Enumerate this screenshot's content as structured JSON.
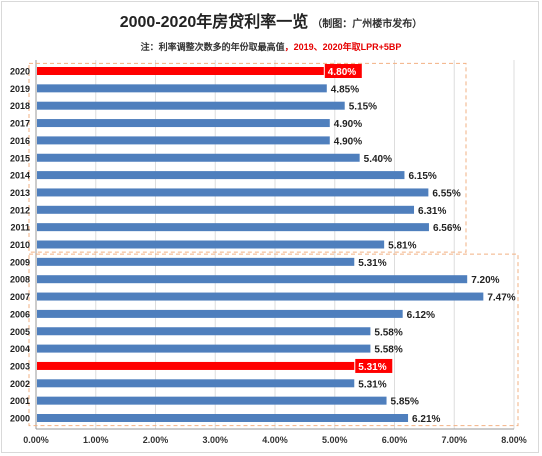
{
  "header": {
    "title": "2000-2020年房贷利率一览",
    "subtitle": "（制图：广州楼市发布）",
    "note_prefix": "注：利率调整次数多的年份取最高值",
    "note_highlight": "，2019、2020年取LPR+5BP"
  },
  "colors": {
    "bar": "#4f7fbd",
    "highlight": "#ff0000",
    "box_border": "#f2b183",
    "grid": "#dddddd",
    "axis": "#999999"
  },
  "chart_data": {
    "type": "bar",
    "orientation": "horizontal",
    "title": "2000-2020年房贷利率一览",
    "categories": [
      "2020",
      "2019",
      "2018",
      "2017",
      "2016",
      "2015",
      "2014",
      "2013",
      "2012",
      "2011",
      "2010",
      "2009",
      "2008",
      "2007",
      "2006",
      "2005",
      "2004",
      "2003",
      "2002",
      "2001",
      "2000"
    ],
    "values": [
      4.8,
      4.85,
      5.15,
      4.9,
      4.9,
      5.4,
      6.15,
      6.55,
      6.31,
      6.56,
      5.81,
      5.31,
      7.2,
      7.47,
      6.12,
      5.58,
      5.58,
      5.31,
      5.31,
      5.85,
      6.21
    ],
    "value_labels": [
      "4.80%",
      "4.85%",
      "5.15%",
      "4.90%",
      "4.90%",
      "5.40%",
      "6.15%",
      "6.55%",
      "6.31%",
      "6.56%",
      "5.81%",
      "5.31%",
      "7.20%",
      "7.47%",
      "6.12%",
      "5.58%",
      "5.58%",
      "5.31%",
      "5.31%",
      "5.85%",
      "6.21%"
    ],
    "highlighted": [
      "2020",
      "2003"
    ],
    "groups": [
      {
        "from": "2020",
        "to": "2010"
      },
      {
        "from": "2009",
        "to": "2000"
      }
    ],
    "xlim": [
      0,
      8
    ],
    "xticks": [
      "0.00%",
      "1.00%",
      "2.00%",
      "3.00%",
      "4.00%",
      "5.00%",
      "6.00%",
      "7.00%",
      "8.00%"
    ],
    "grid": "vertical",
    "legend": "none"
  }
}
